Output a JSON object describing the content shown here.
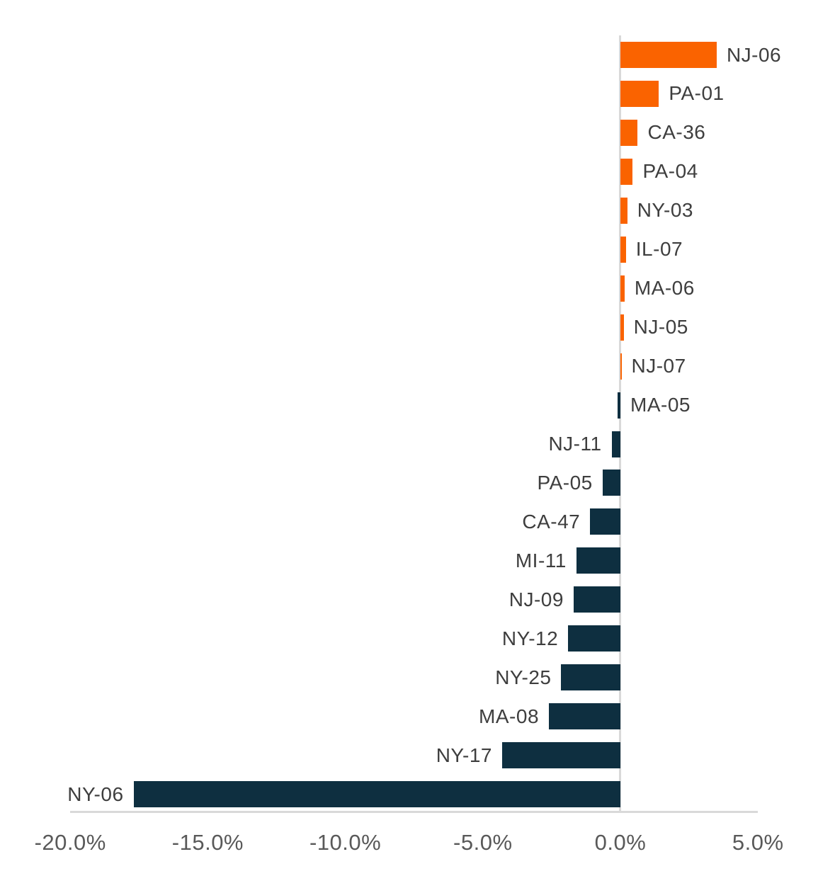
{
  "chart_data": {
    "type": "bar",
    "orientation": "horizontal",
    "title": "",
    "xlabel": "",
    "ylabel": "",
    "grid": "off",
    "legend": "none",
    "xlim": [
      -20,
      5
    ],
    "categories": [
      "NJ-06",
      "PA-01",
      "CA-36",
      "PA-04",
      "NY-03",
      "IL-07",
      "MA-06",
      "NJ-05",
      "NJ-07",
      "MA-05",
      "NJ-11",
      "PA-05",
      "CA-47",
      "MI-11",
      "NJ-09",
      "NY-12",
      "NY-25",
      "MA-08",
      "NY-17",
      "NY-06"
    ],
    "values": [
      3.5,
      1.4,
      0.63,
      0.45,
      0.25,
      0.2,
      0.15,
      0.12,
      0.03,
      -0.1,
      -0.32,
      -0.65,
      -1.1,
      -1.6,
      -1.7,
      -1.9,
      -2.15,
      -2.6,
      -4.3,
      -17.7
    ],
    "values_unit": "percent",
    "label_sides": [
      "right",
      "right",
      "right",
      "right",
      "right",
      "right",
      "right",
      "right",
      "right",
      "right",
      "left",
      "left",
      "left",
      "left",
      "left",
      "left",
      "left",
      "left",
      "left",
      "left"
    ],
    "x_tick_values": [
      -20,
      -15,
      -10,
      -5,
      0,
      5
    ],
    "x_tick_labels": [
      "-20.0%",
      "-15.0%",
      "-10.0%",
      "-5.0%",
      "0.0%",
      "5.0%"
    ],
    "colors": {
      "positive_bar": "#fa6300",
      "negative_bar": "#0e2f40",
      "axis_line": "#d9d9d9",
      "category_label": "#3e3e3e",
      "tick_label": "#595959",
      "background": "#ffffff"
    }
  }
}
